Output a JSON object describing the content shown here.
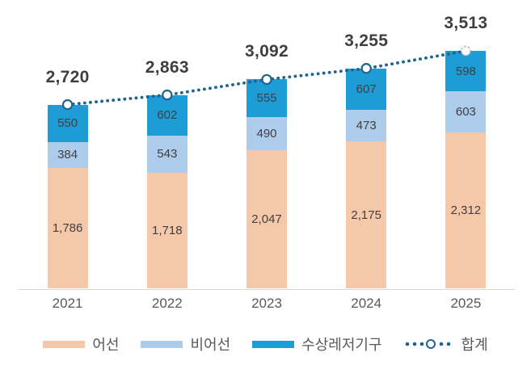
{
  "chart_data": {
    "type": "bar",
    "stacked": true,
    "categories": [
      "2021",
      "2022",
      "2023",
      "2024",
      "2025"
    ],
    "series": [
      {
        "name": "어선",
        "color": "#F5C8AA",
        "values": [
          1786,
          1718,
          2047,
          2175,
          2312
        ]
      },
      {
        "name": "비어선",
        "color": "#ADCBEB",
        "values": [
          384,
          543,
          490,
          473,
          603
        ]
      },
      {
        "name": "수상레저기구",
        "color": "#1D9CD6",
        "values": [
          550,
          602,
          555,
          607,
          598
        ]
      }
    ],
    "line": {
      "name": "합계",
      "color": "#1F6490",
      "style": "dotted",
      "marker": "open-circle",
      "last_marker_style": "dashed-outline",
      "values": [
        2720,
        2863,
        3092,
        3255,
        3513
      ]
    },
    "total_labels": [
      "2,720",
      "2,863",
      "3,092",
      "3,255",
      "3,513"
    ],
    "legend_position": "bottom",
    "grid": false,
    "axis_line_color": "#D9D9D9",
    "label_colors": {
      "segment": "#404040",
      "total": "#3F3F3F",
      "axis": "#595959",
      "legend": "#595959"
    }
  }
}
